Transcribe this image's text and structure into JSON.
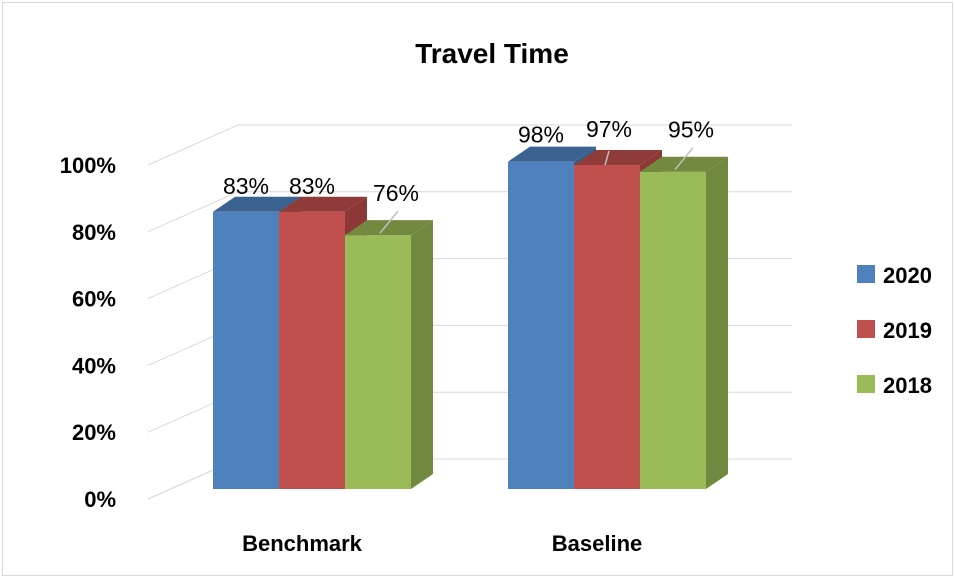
{
  "chart_data": {
    "type": "bar",
    "title": "Travel Time",
    "xlabel": "",
    "ylabel": "",
    "categories": [
      "Benchmark",
      "Baseline"
    ],
    "series": [
      {
        "name": "2020",
        "values": [
          83,
          98
        ],
        "labels": [
          "83%",
          "98%"
        ],
        "color": "#4F81BD",
        "top_color": "#3A6391",
        "side_color": "#385D8A"
      },
      {
        "name": "2019",
        "values": [
          83,
          97
        ],
        "labels": [
          "83%",
          "97%"
        ],
        "color": "#C0504D",
        "top_color": "#8E3B39",
        "side_color": "#8C3836"
      },
      {
        "name": "2018",
        "values": [
          76,
          95
        ],
        "labels": [
          "76%",
          "95%"
        ],
        "color": "#9BBB59",
        "top_color": "#72893F",
        "side_color": "#71893F"
      }
    ],
    "ylim": [
      0,
      100
    ],
    "yticks": [
      0,
      20,
      40,
      60,
      80,
      100
    ],
    "ytick_labels": [
      "0%",
      "20%",
      "40%",
      "60%",
      "80%",
      "100%"
    ],
    "grid": true,
    "legend": "right",
    "three_d": true
  }
}
